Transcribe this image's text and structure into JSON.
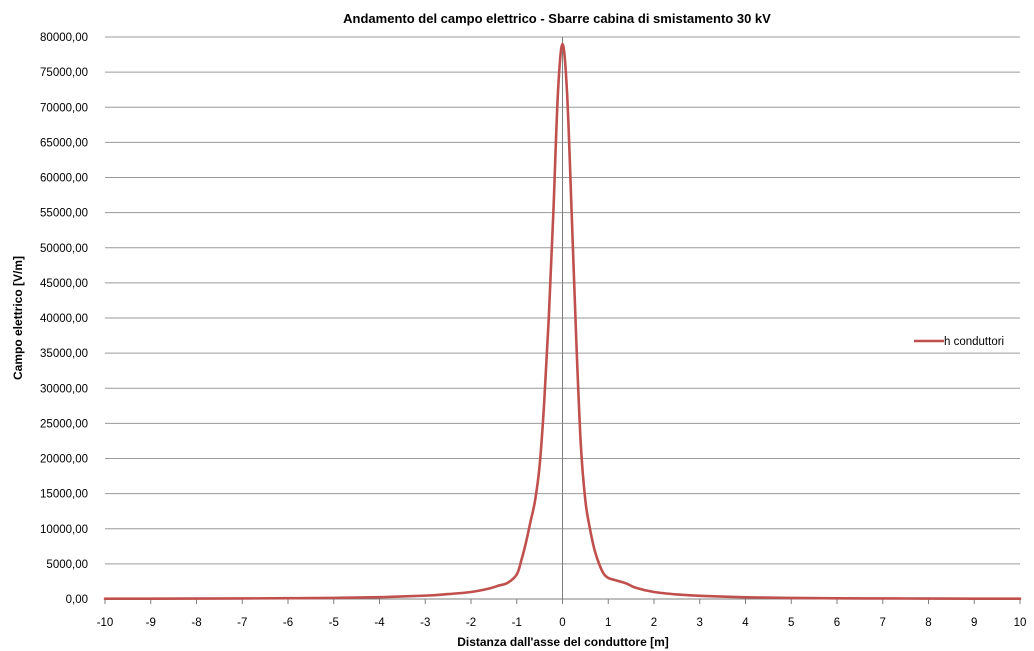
{
  "chart_data": {
    "type": "line",
    "title": "Andamento del campo elettrico - Sbarre cabina  di smistamento 30 kV",
    "xlabel": "Distanza dall'asse del conduttore [m]",
    "ylabel": "Campo elettrico [V/m]",
    "xlim": [
      -10,
      10
    ],
    "ylim": [
      0,
      80000
    ],
    "x_ticks": [
      -10,
      -9,
      -8,
      -7,
      -6,
      -5,
      -4,
      -3,
      -2,
      -1,
      0,
      1,
      2,
      3,
      4,
      5,
      6,
      7,
      8,
      9,
      10
    ],
    "x_tick_labels": [
      "-10",
      "-9",
      "-8",
      "-7",
      "-6",
      "-5",
      "-4",
      "-3",
      "-2",
      "-1",
      "0",
      "1",
      "2",
      "3",
      "4",
      "5",
      "6",
      "7",
      "8",
      "9",
      "10"
    ],
    "y_ticks": [
      0,
      5000,
      10000,
      15000,
      20000,
      25000,
      30000,
      35000,
      40000,
      45000,
      50000,
      55000,
      60000,
      65000,
      70000,
      75000,
      80000
    ],
    "y_tick_labels": [
      "0,00",
      "5000,00",
      "10000,00",
      "15000,00",
      "20000,00",
      "25000,00",
      "30000,00",
      "35000,00",
      "40000,00",
      "45000,00",
      "50000,00",
      "55000,00",
      "60000,00",
      "65000,00",
      "70000,00",
      "75000,00",
      "80000,00"
    ],
    "grid": {
      "horizontal": true,
      "vertical": false
    },
    "legend_position": "right",
    "series": [
      {
        "name": "h conduttori",
        "color": "#c0504d",
        "points": [
          [
            -10,
            40
          ],
          [
            -9,
            50
          ],
          [
            -8,
            60
          ],
          [
            -7,
            80
          ],
          [
            -6,
            110
          ],
          [
            -5,
            160
          ],
          [
            -4,
            260
          ],
          [
            -3,
            480
          ],
          [
            -2.5,
            700
          ],
          [
            -2,
            1000
          ],
          [
            -1.6,
            1500
          ],
          [
            -1.4,
            1900
          ],
          [
            -1.2,
            2300
          ],
          [
            -1.0,
            3500
          ],
          [
            -0.9,
            5500
          ],
          [
            -0.8,
            8000
          ],
          [
            -0.7,
            11000
          ],
          [
            -0.6,
            14000
          ],
          [
            -0.5,
            19000
          ],
          [
            -0.4,
            28000
          ],
          [
            -0.3,
            40000
          ],
          [
            -0.2,
            55000
          ],
          [
            -0.1,
            72000
          ],
          [
            0,
            79000
          ],
          [
            0.1,
            72000
          ],
          [
            0.2,
            55000
          ],
          [
            0.3,
            37000
          ],
          [
            0.4,
            22000
          ],
          [
            0.5,
            14000
          ],
          [
            0.6,
            10000
          ],
          [
            0.7,
            7000
          ],
          [
            0.8,
            5000
          ],
          [
            0.9,
            3600
          ],
          [
            1.0,
            3000
          ],
          [
            1.2,
            2600
          ],
          [
            1.4,
            2200
          ],
          [
            1.6,
            1600
          ],
          [
            2,
            1000
          ],
          [
            2.5,
            650
          ],
          [
            3,
            450
          ],
          [
            4,
            250
          ],
          [
            5,
            150
          ],
          [
            6,
            100
          ],
          [
            7,
            80
          ],
          [
            8,
            60
          ],
          [
            9,
            50
          ],
          [
            10,
            40
          ]
        ]
      }
    ]
  }
}
